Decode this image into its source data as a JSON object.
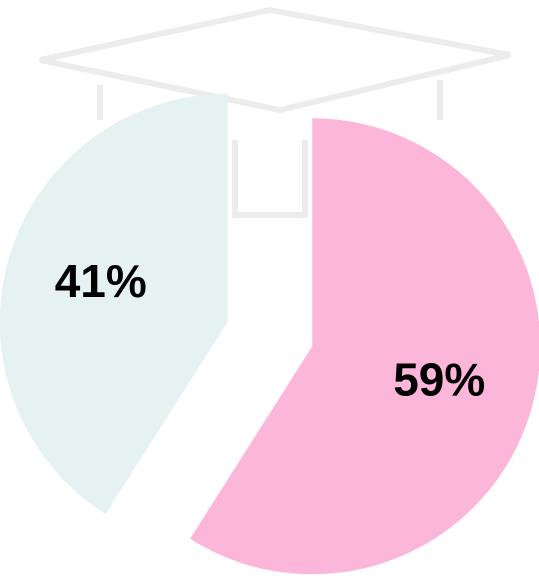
{
  "chart_data": {
    "type": "pie",
    "values": [
      59,
      41
    ],
    "value_labels": [
      "59%",
      "41%"
    ],
    "colors": [
      "#fbb6da",
      "#e6f2f2"
    ]
  }
}
